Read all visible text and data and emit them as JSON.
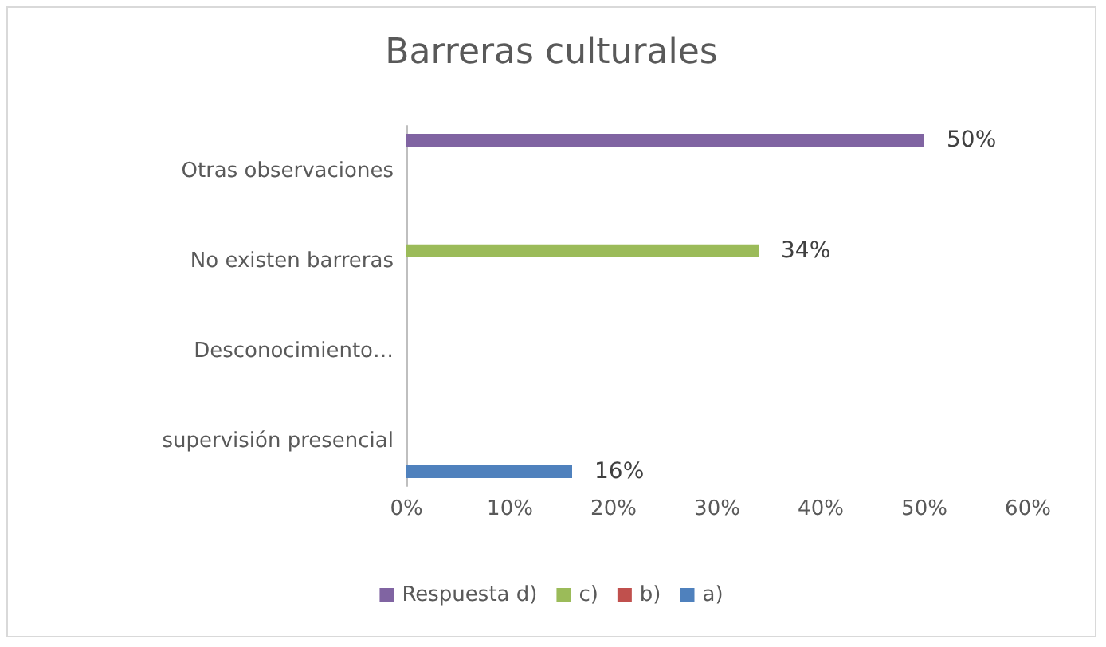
{
  "chart_data": {
    "type": "bar",
    "orientation": "horizontal",
    "title": "Barreras culturales",
    "categories": [
      "Otras observaciones",
      "No existen barreras",
      "Desconocimiento…",
      "supervisión presencial"
    ],
    "series": [
      {
        "name": "Respuesta d)",
        "color": "#8064a2",
        "values": [
          50,
          null,
          null,
          null
        ],
        "value_labels": [
          "50%",
          null,
          null,
          null
        ]
      },
      {
        "name": "c)",
        "color": "#9bbb59",
        "values": [
          null,
          34,
          null,
          null
        ],
        "value_labels": [
          null,
          "34%",
          null,
          null
        ]
      },
      {
        "name": "b)",
        "color": "#c0504d",
        "values": [
          null,
          null,
          null,
          null
        ]
      },
      {
        "name": "a)",
        "color": "#4f81bd",
        "values": [
          null,
          null,
          null,
          16
        ],
        "value_labels": [
          null,
          null,
          null,
          "16%"
        ]
      }
    ],
    "xlim": [
      0,
      60
    ],
    "xticks": [
      {
        "value": 0,
        "label": "0%"
      },
      {
        "value": 10,
        "label": "10%"
      },
      {
        "value": 20,
        "label": "20%"
      },
      {
        "value": 30,
        "label": "30%"
      },
      {
        "value": 40,
        "label": "40%"
      },
      {
        "value": 50,
        "label": "50%"
      },
      {
        "value": 60,
        "label": "60%"
      }
    ],
    "grid": false,
    "legend": "bottom"
  }
}
